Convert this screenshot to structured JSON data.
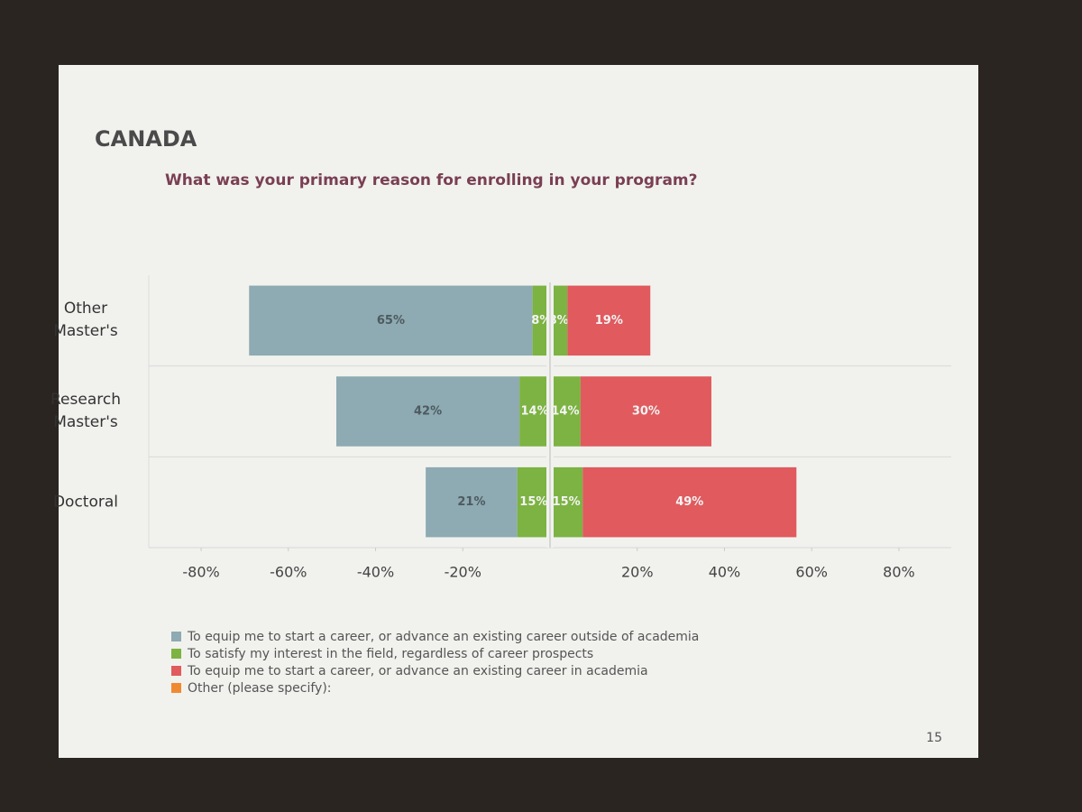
{
  "chart_data": {
    "type": "diverging_bar",
    "title": "CANADA",
    "subtitle": "What was your primary reason for enrolling in your program?",
    "page_number": "15",
    "categories": [
      "Other Master's",
      "Research Master's",
      "Doctoral"
    ],
    "series": [
      {
        "name": "To equip me to start a career, or advance an existing career outside of academia",
        "color": "#8eaab2",
        "values": [
          65,
          42,
          21
        ],
        "value_labels": [
          "65%",
          "42%",
          "21%"
        ]
      },
      {
        "name": "To satisfy my interest in the field, regardless of career prospects",
        "color": "#7cb342",
        "values": [
          8,
          14,
          15
        ],
        "value_labels": [
          "8%",
          "14%",
          "15%"
        ]
      },
      {
        "name": "To equip me to start a career, or advance an existing career in academia",
        "color": "#e05a5e",
        "values": [
          19,
          30,
          49
        ],
        "value_labels": [
          "19%",
          "30%",
          "49%"
        ]
      },
      {
        "name": "Other (please specify):",
        "color": "#f08a30",
        "values": [
          null,
          null,
          null
        ]
      }
    ],
    "xlim": [
      -92,
      92
    ],
    "xticks": [
      {
        "value": -80,
        "label": "-80%"
      },
      {
        "value": -60,
        "label": "-60%"
      },
      {
        "value": -40,
        "label": "-40%"
      },
      {
        "value": -20,
        "label": "-20%"
      },
      {
        "value": 20,
        "label": "20%"
      },
      {
        "value": 40,
        "label": "40%"
      },
      {
        "value": 60,
        "label": "60%"
      },
      {
        "value": 80,
        "label": "80%"
      }
    ]
  }
}
